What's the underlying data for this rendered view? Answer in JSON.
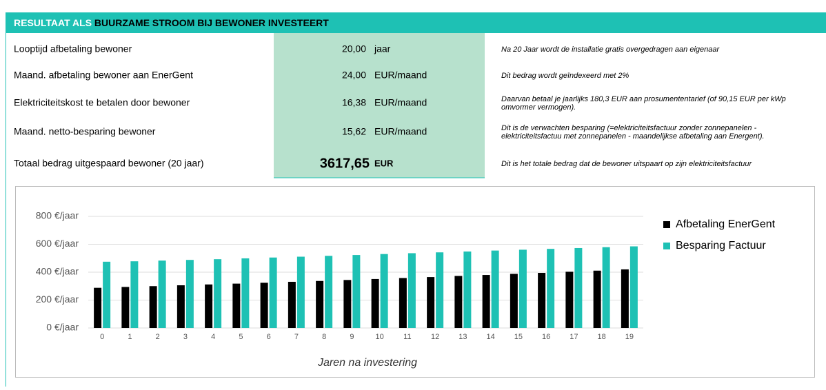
{
  "header": {
    "title_prefix": "RESULTAAT ALS ",
    "title_highlight": "BUURZAME STROOM BIJ BEWONER INVESTEERT"
  },
  "table": {
    "rows": [
      {
        "label": "Looptijd afbetaling bewoner",
        "value": "20,00",
        "unit": "jaar",
        "note": "Na 20 Jaar wordt de installatie gratis overgedragen aan eigenaar"
      },
      {
        "label": "Maand. afbetaling bewoner aan EnerGent",
        "value": "24,00",
        "unit": "EUR/maand",
        "note": "Dit bedrag wordt geïndexeerd met 2%"
      },
      {
        "label": "Elektriciteitskost te betalen door bewoner",
        "value": "16,38",
        "unit": "EUR/maand",
        "note": "Daarvan betaal je jaarlijks 180,3 EUR aan prosumententarief (of 90,15 EUR per kWp omvormer vermogen)."
      },
      {
        "label": "Maand. netto-besparing bewoner",
        "value": "15,62",
        "unit": "EUR/maand",
        "note": "Dit is de verwachten besparing (=elektriciteitsfactuur zonder zonnepanelen - elektriciteitsfactuu met zonnepanelen - maandelijkse afbetaling aan Energent)."
      },
      {
        "label": "Totaal bedrag uitgespaard bewoner (20 jaar)",
        "value": "3617,65",
        "unit": "EUR",
        "note": "Dit is het totale bedrag dat de bewoner uitspaart op zijn elektriciteitsfactuur"
      }
    ]
  },
  "chart_data": {
    "type": "bar",
    "x_label": "Jaren na investering",
    "categories": [
      "0",
      "1",
      "2",
      "3",
      "4",
      "5",
      "6",
      "7",
      "8",
      "9",
      "10",
      "11",
      "12",
      "13",
      "14",
      "15",
      "16",
      "17",
      "18",
      "19"
    ],
    "series": [
      {
        "name": "Afbetaling EnerGent",
        "color": "#000000",
        "values": [
          288,
          294,
          300,
          306,
          312,
          318,
          324,
          331,
          337,
          344,
          351,
          358,
          365,
          373,
          380,
          388,
          395,
          403,
          411,
          420
        ]
      },
      {
        "name": "Besparing Factuur",
        "color": "#1ec1b4",
        "values": [
          475,
          478,
          483,
          488,
          493,
          499,
          505,
          511,
          517,
          523,
          530,
          536,
          542,
          548,
          555,
          561,
          567,
          573,
          579,
          585
        ]
      }
    ],
    "ylim": [
      0,
      800
    ],
    "yticks": [
      {
        "value": 0,
        "label": "0 €/jaar"
      },
      {
        "value": 200,
        "label": "200 €/jaar"
      },
      {
        "value": 400,
        "label": "400 €/jaar"
      },
      {
        "value": 600,
        "label": "600 €/jaar"
      },
      {
        "value": 800,
        "label": "800 €/jaar"
      }
    ],
    "grid": true,
    "legend": "right"
  }
}
